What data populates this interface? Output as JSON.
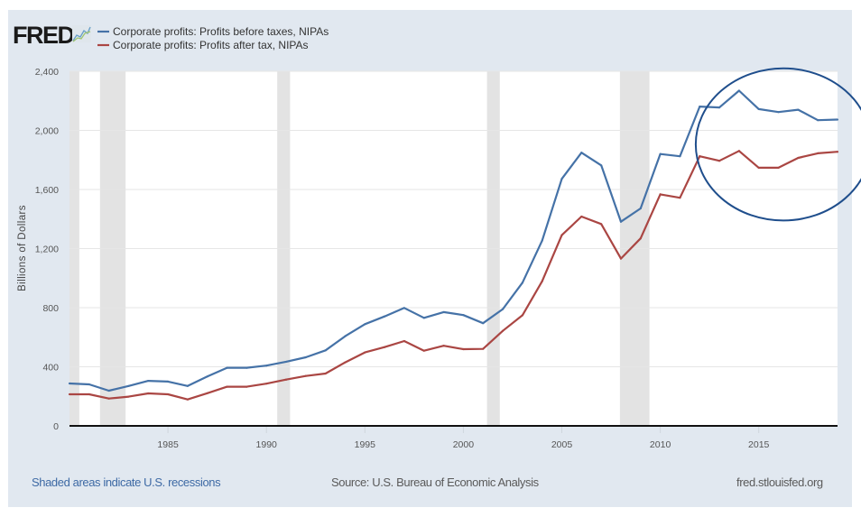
{
  "header": {
    "logo_text": "FRED",
    "logo_icon": "chart-line-icon"
  },
  "colors": {
    "panel": "#e1e8f0",
    "series_before_tax": "#4572a7",
    "series_after_tax": "#aa4643",
    "recession": "#e3e3e3",
    "annotation": "#1f4e8c"
  },
  "footer": {
    "recession_note": "Shaded areas indicate U.S. recessions",
    "source": "Source: U.S. Bureau of Economic Analysis",
    "site": "fred.stlouisfed.org"
  },
  "chart_data": {
    "type": "line",
    "title": "",
    "xlabel": "",
    "ylabel": "Billions of Dollars",
    "xlim": [
      1980,
      2019
    ],
    "ylim": [
      0,
      2400
    ],
    "grid": true,
    "legend_position": "top-left",
    "x_ticks": [
      1985,
      1990,
      1995,
      2000,
      2005,
      2010,
      2015
    ],
    "x_tick_labels": [
      "1985",
      "1990",
      "1995",
      "2000",
      "2005",
      "2010",
      "2015"
    ],
    "y_ticks": [
      0,
      400,
      800,
      1200,
      1600,
      2000,
      2400
    ],
    "y_tick_labels": [
      "0",
      "400",
      "800",
      "1,200",
      "1,600",
      "2,000",
      "2,400"
    ],
    "x": [
      1980,
      1981,
      1982,
      1983,
      1984,
      1985,
      1986,
      1987,
      1988,
      1989,
      1990,
      1991,
      1992,
      1993,
      1994,
      1995,
      1996,
      1997,
      1998,
      1999,
      2000,
      2001,
      2002,
      2003,
      2004,
      2005,
      2006,
      2007,
      2008,
      2009,
      2010,
      2011,
      2012,
      2013,
      2014,
      2015,
      2016,
      2017,
      2018,
      2019
    ],
    "series": [
      {
        "name": "Corporate profits: Profits before taxes, NIPAs",
        "color": "#4572a7",
        "values": [
          287,
          281,
          238,
          270,
          305,
          300,
          270,
          334,
          393,
          393,
          408,
          434,
          464,
          511,
          607,
          688,
          741,
          798,
          731,
          770,
          750,
          695,
          790,
          969,
          1254,
          1672,
          1849,
          1763,
          1382,
          1472,
          1840,
          1825,
          2161,
          2155,
          2269,
          2144,
          2124,
          2140,
          2069,
          2073
        ]
      },
      {
        "name": "Corporate profits: Profits after tax, NIPAs",
        "color": "#aa4643",
        "values": [
          214,
          214,
          185,
          198,
          220,
          214,
          179,
          221,
          265,
          265,
          286,
          313,
          338,
          354,
          430,
          497,
          533,
          574,
          509,
          542,
          519,
          521,
          643,
          749,
          979,
          1291,
          1417,
          1366,
          1132,
          1269,
          1567,
          1544,
          1825,
          1794,
          1861,
          1747,
          1747,
          1814,
          1845,
          1855
        ]
      }
    ],
    "recessions": [
      [
        1980.0,
        1980.5
      ],
      [
        1981.55,
        1982.85
      ],
      [
        1990.55,
        1991.2
      ],
      [
        2001.2,
        2001.85
      ],
      [
        2007.95,
        2009.45
      ]
    ],
    "annotations": [
      {
        "type": "ellipse",
        "label": "highlight 2012-2019",
        "x_range": [
          2011.8,
          2020.7
        ],
        "y_range": [
          1390,
          2420
        ]
      }
    ]
  }
}
